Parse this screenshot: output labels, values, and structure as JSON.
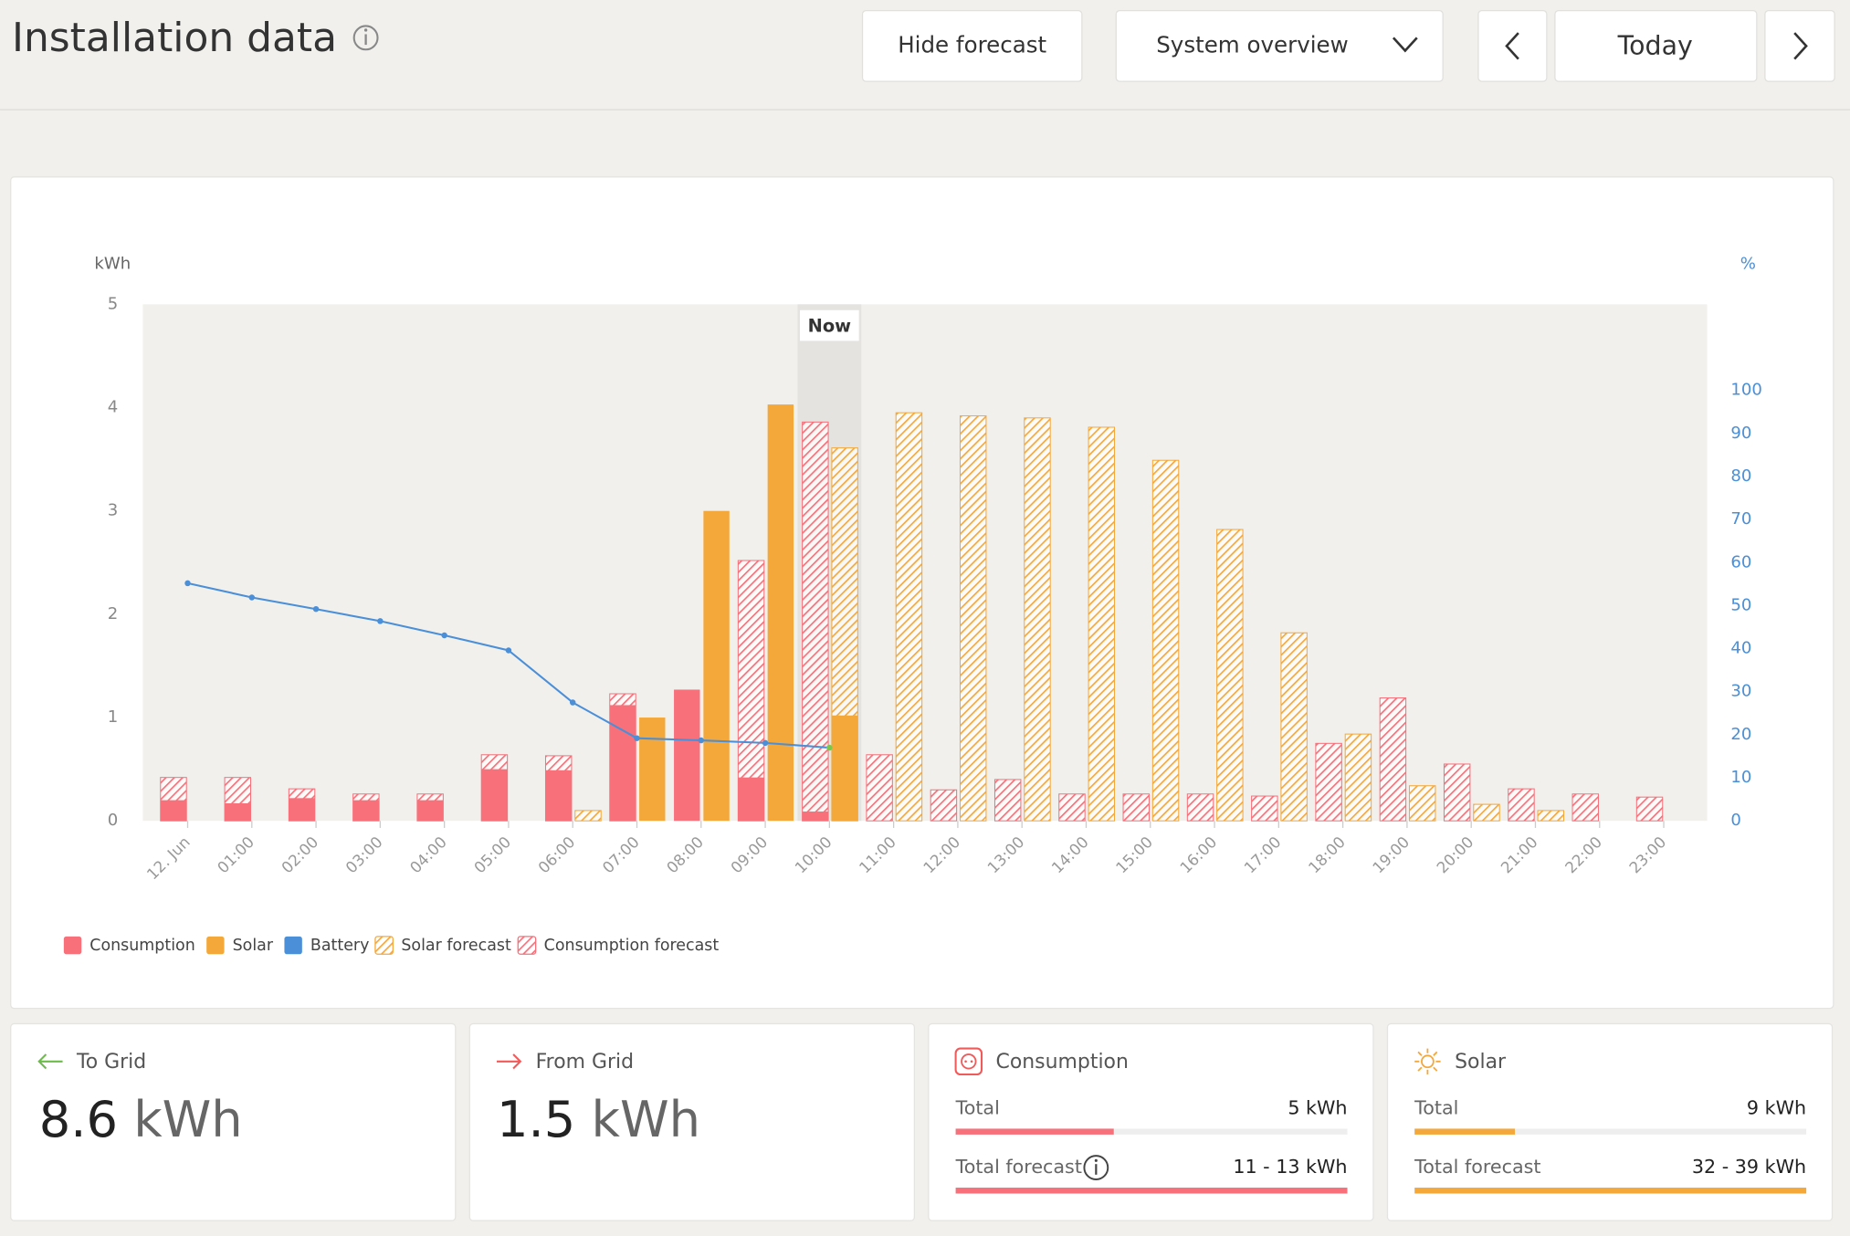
{
  "header": {
    "title": "Installation data",
    "buttons": [
      "Hide forecast",
      "System overview",
      "Today"
    ]
  },
  "chart_data": {
    "type": "bar",
    "y_label": "kWh",
    "y2_label": "%",
    "now_label": "Now",
    "categories": [
      "12. Jun",
      "01:00",
      "02:00",
      "03:00",
      "04:00",
      "05:00",
      "06:00",
      "07:00",
      "08:00",
      "09:00",
      "10:00",
      "11:00",
      "12:00",
      "13:00",
      "14:00",
      "15:00",
      "16:00",
      "17:00",
      "18:00",
      "19:00",
      "20:00",
      "21:00",
      "22:00",
      "23:00"
    ],
    "ylim": [
      0,
      5
    ],
    "yticks": [
      0,
      1,
      2,
      3,
      4,
      5
    ],
    "y2lim": [
      0,
      120
    ],
    "y2ticks": [
      0,
      10,
      20,
      30,
      40,
      50,
      60,
      70,
      80,
      90,
      100
    ],
    "series": [
      {
        "name": "Consumption",
        "color": "#f7707a",
        "pattern": "solid",
        "slot": "left",
        "values": [
          0.2,
          0.17,
          0.22,
          0.2,
          0.2,
          0.5,
          0.49,
          1.12,
          1.27,
          0.42,
          0.09,
          null,
          null,
          null,
          null,
          null,
          null,
          null,
          null,
          null,
          null,
          null,
          null,
          null
        ]
      },
      {
        "name": "Solar",
        "color": "#f5a83a",
        "pattern": "solid",
        "slot": "right",
        "values": [
          null,
          null,
          null,
          null,
          null,
          null,
          null,
          1.0,
          3.0,
          4.03,
          1.02,
          null,
          null,
          null,
          null,
          null,
          null,
          null,
          null,
          null,
          null,
          null,
          null,
          null
        ]
      },
      {
        "name": "Battery",
        "color": "#4a8fd8",
        "type": "line",
        "axis": "y2",
        "values": [
          55.2,
          51.9,
          49.2,
          46.4,
          43.1,
          39.6,
          27.5,
          19.2,
          18.7,
          18.1,
          17.0,
          null,
          null,
          null,
          null,
          null,
          null,
          null,
          null,
          null,
          null,
          null,
          null,
          null
        ]
      },
      {
        "name": "Solar forecast",
        "color": "#f5a83a",
        "pattern": "hatched",
        "slot": "right",
        "values": [
          null,
          null,
          null,
          null,
          null,
          null,
          0.1,
          null,
          null,
          null,
          3.61,
          3.95,
          3.92,
          3.9,
          3.81,
          3.49,
          2.82,
          1.82,
          0.84,
          0.34,
          0.16,
          0.1,
          null,
          null
        ]
      },
      {
        "name": "Consumption forecast",
        "color": "#f7707a",
        "pattern": "hatched",
        "slot": "left",
        "values": [
          0.42,
          0.42,
          0.31,
          0.26,
          0.26,
          0.64,
          0.63,
          1.23,
          null,
          2.52,
          3.86,
          0.64,
          0.3,
          0.4,
          0.26,
          0.26,
          0.26,
          0.24,
          0.75,
          1.19,
          0.55,
          0.31,
          0.26,
          0.23
        ]
      }
    ]
  },
  "cards": [
    {
      "title": "To Grid",
      "value": "8.6",
      "unit": "kWh"
    },
    {
      "title": "From Grid",
      "value": "1.5",
      "unit": "kWh"
    },
    {
      "title": "Consumption",
      "rows": [
        {
          "label": "Total",
          "value": "5 kWh"
        },
        {
          "label": "Total forecast",
          "value": "11 - 13 kWh"
        }
      ]
    },
    {
      "title": "Solar",
      "rows": [
        {
          "label": "Total",
          "value": "9 kWh"
        },
        {
          "label": "Total forecast",
          "value": "32 - 39 kWh"
        }
      ]
    }
  ]
}
